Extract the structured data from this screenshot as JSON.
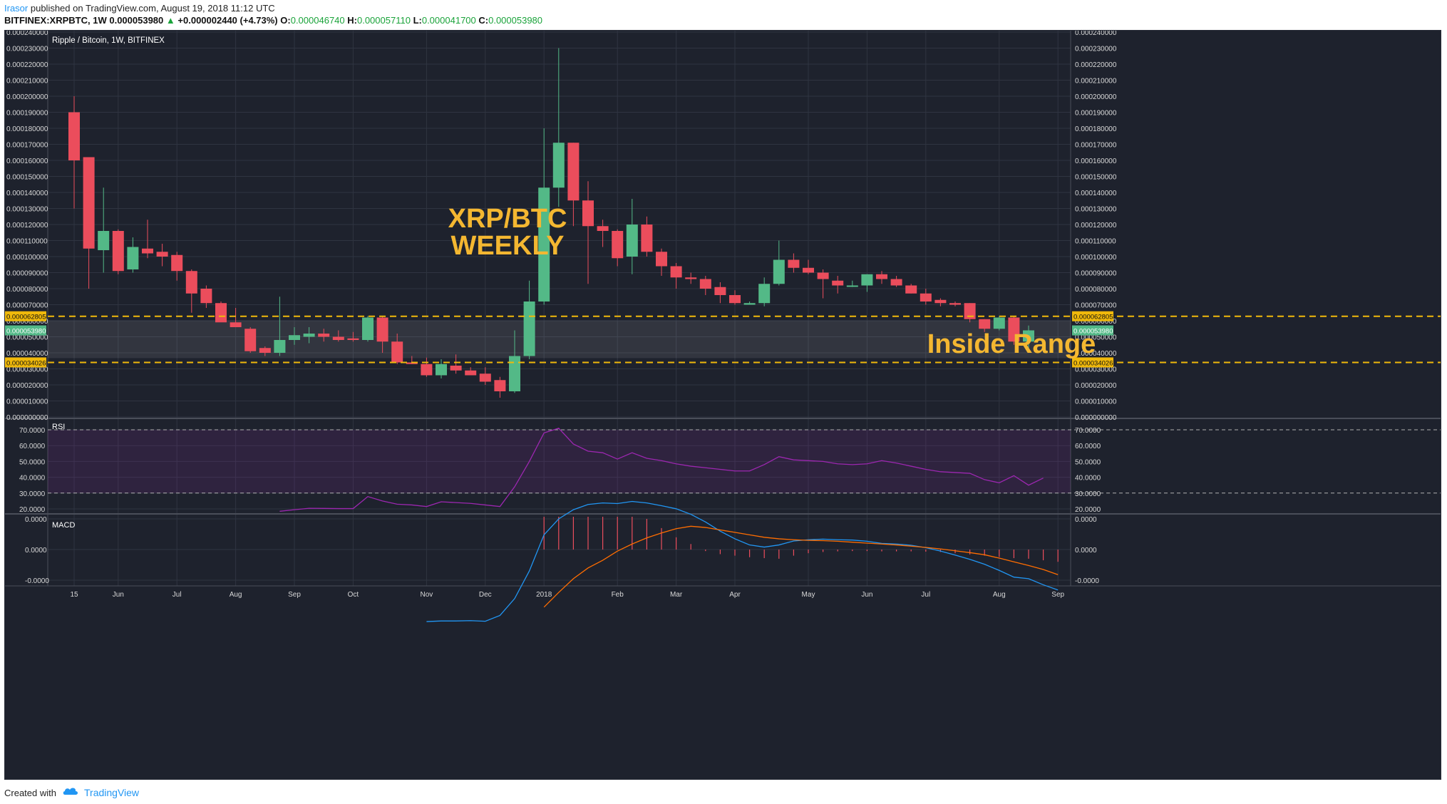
{
  "header": {
    "user": "Irasor",
    "published_text": "published on TradingView.com, August 19, 2018 11:12 UTC",
    "symbol": "BITFINEX:XRPBTC, 1W",
    "last": "0.000053980",
    "change_arrow": "▲",
    "change": "+0.000002440 (+4.73%)",
    "open_label": "O:",
    "open": "0.000046740",
    "high_label": "H:",
    "high": "0.000057110",
    "low_label": "L:",
    "low": "0.000041700",
    "close_label": "C:",
    "close": "0.000053980"
  },
  "chart_title": "Ripple / Bitcoin, 1W, BITFINEX",
  "annotation_title": [
    "XRP/BTC",
    "WEEKLY"
  ],
  "annotation_range": "Inside Range",
  "levels": [
    {
      "value": 6.2805e-05,
      "label": "0.000062805"
    },
    {
      "value": 3.4026e-05,
      "label": "0.000034026"
    }
  ],
  "last_price_label": "0.000053980",
  "colors": {
    "background": "#1e222d",
    "up": "#53b987",
    "down": "#eb4d5c",
    "level": "#f0b90b",
    "annotation": "#f4b731",
    "rsi_line": "#9c27b0",
    "macd_line": "#2196f3",
    "signal_line": "#ff6d00"
  },
  "footer": {
    "created_with": "Created with",
    "brand": "TradingView",
    "logo_icon": "tradingview-cloud-icon"
  },
  "chart_data": [
    {
      "type": "candlestick",
      "title": "Ripple / Bitcoin, 1W, BITFINEX",
      "ylim": [
        0.0,
        0.00024
      ],
      "y_tick_labels": [
        "0.000000000",
        "0.000010000",
        "0.000020000",
        "0.000030000",
        "0.000040000",
        "0.000050000",
        "0.000060000",
        "0.000070000",
        "0.000080000",
        "0.000090000",
        "0.000100000",
        "0.000110000",
        "0.000120000",
        "0.000130000",
        "0.000140000",
        "0.000150000",
        "0.000160000",
        "0.000170000",
        "0.000180000",
        "0.000190000",
        "0.000200000",
        "0.000210000",
        "0.000220000",
        "0.000230000",
        "0.000240000"
      ],
      "x_ticks": [
        {
          "label": "15",
          "i": 0
        },
        {
          "label": "Jun",
          "i": 3
        },
        {
          "label": "Jul",
          "i": 7
        },
        {
          "label": "Aug",
          "i": 11
        },
        {
          "label": "Sep",
          "i": 15
        },
        {
          "label": "Oct",
          "i": 19
        },
        {
          "label": "Nov",
          "i": 24
        },
        {
          "label": "Dec",
          "i": 28
        },
        {
          "label": "2018",
          "i": 32
        },
        {
          "label": "Feb",
          "i": 37
        },
        {
          "label": "Mar",
          "i": 41
        },
        {
          "label": "Apr",
          "i": 45
        },
        {
          "label": "May",
          "i": 50
        },
        {
          "label": "Jun",
          "i": 54
        },
        {
          "label": "Jul",
          "i": 58
        },
        {
          "label": "Aug",
          "i": 63
        },
        {
          "label": "Sep",
          "i": 67
        }
      ],
      "candles": [
        [
          0.00019,
          0.0002,
          0.00013,
          0.00016
        ],
        [
          0.000162,
          0.000162,
          8e-05,
          0.000105
        ],
        [
          0.000104,
          0.000143,
          9e-05,
          0.000116
        ],
        [
          0.000116,
          0.000117,
          8.9e-05,
          9.1e-05
        ],
        [
          9.2e-05,
          0.000112,
          9e-05,
          0.000106
        ],
        [
          0.000105,
          0.000123,
          9.9e-05,
          0.000102
        ],
        [
          0.000103,
          0.000108,
          9.4e-05,
          0.0001
        ],
        [
          0.000101,
          0.000103,
          8.5e-05,
          9.1e-05
        ],
        [
          9.1e-05,
          9.2e-05,
          6.5e-05,
          7.7e-05
        ],
        [
          8e-05,
          8.2e-05,
          6.8e-05,
          7.1e-05
        ],
        [
          7.1e-05,
          7.2e-05,
          6e-05,
          5.9e-05
        ],
        [
          5.9e-05,
          6.8e-05,
          5.7e-05,
          5.6e-05
        ],
        [
          5.5e-05,
          5.6e-05,
          4e-05,
          4.1e-05
        ],
        [
          4.3e-05,
          4.4e-05,
          3.8e-05,
          4e-05
        ],
        [
          4e-05,
          7.5e-05,
          3.8e-05,
          4.8e-05
        ],
        [
          4.8e-05,
          5.6e-05,
          4.5e-05,
          5.1e-05
        ],
        [
          5e-05,
          5.6e-05,
          4.6e-05,
          5.2e-05
        ],
        [
          5.2e-05,
          5.5e-05,
          4.7e-05,
          5e-05
        ],
        [
          5e-05,
          5.4e-05,
          4.7e-05,
          4.8e-05
        ],
        [
          4.9e-05,
          5.3e-05,
          4.7e-05,
          4.8e-05
        ],
        [
          4.8e-05,
          6.3e-05,
          4.7e-05,
          6.2e-05
        ],
        [
          6.2e-05,
          6.3e-05,
          4e-05,
          4.7e-05
        ],
        [
          4.7e-05,
          5.2e-05,
          3.3e-05,
          3.4e-05
        ],
        [
          3.4e-05,
          3.8e-05,
          3.3e-05,
          3.3e-05
        ],
        [
          3.3e-05,
          3.7e-05,
          2.5e-05,
          2.6e-05
        ],
        [
          2.6e-05,
          3.6e-05,
          2.4e-05,
          3.3e-05
        ],
        [
          3.2e-05,
          3.9e-05,
          2.7e-05,
          2.9e-05
        ],
        [
          2.9e-05,
          3.1e-05,
          2.6e-05,
          2.6e-05
        ],
        [
          2.7e-05,
          3.1e-05,
          2e-05,
          2.2e-05
        ],
        [
          2.3e-05,
          2.5e-05,
          1.2e-05,
          1.6e-05
        ],
        [
          1.6e-05,
          5.4e-05,
          1.5e-05,
          3.8e-05
        ],
        [
          3.8e-05,
          8.5e-05,
          3.6e-05,
          7.2e-05
        ],
        [
          7.2e-05,
          0.00018,
          7e-05,
          0.000143
        ],
        [
          0.000143,
          0.00023,
          0.000131,
          0.000171
        ],
        [
          0.000171,
          0.000171,
          0.000119,
          0.000135
        ],
        [
          0.000135,
          0.000147,
          8.3e-05,
          0.000119
        ],
        [
          0.000119,
          0.000123,
          0.000106,
          0.000116
        ],
        [
          0.000116,
          0.000117,
          9.4e-05,
          9.9e-05
        ],
        [
          0.0001,
          0.000136,
          8.9e-05,
          0.00012
        ],
        [
          0.00012,
          0.000125,
          0.0001,
          0.000103
        ],
        [
          0.000103,
          0.000105,
          8.8e-05,
          9.4e-05
        ],
        [
          9.4e-05,
          9.6e-05,
          8e-05,
          8.7e-05
        ],
        [
          8.7e-05,
          9e-05,
          8.3e-05,
          8.6e-05
        ],
        [
          8.6e-05,
          8.8e-05,
          7.6e-05,
          8e-05
        ],
        [
          8.1e-05,
          8.4e-05,
          7.1e-05,
          7.6e-05
        ],
        [
          7.6e-05,
          7.9e-05,
          7e-05,
          7.1e-05
        ],
        [
          7e-05,
          7.2e-05,
          7e-05,
          7.1e-05
        ],
        [
          7.1e-05,
          8.7e-05,
          6.9e-05,
          8.3e-05
        ],
        [
          8.3e-05,
          0.00011,
          8.2e-05,
          9.8e-05
        ],
        [
          9.8e-05,
          0.000102,
          9e-05,
          9.3e-05
        ],
        [
          9.3e-05,
          9.8e-05,
          8.9e-05,
          9e-05
        ],
        [
          9e-05,
          9.2e-05,
          7.4e-05,
          8.6e-05
        ],
        [
          8.5e-05,
          8.8e-05,
          7.7e-05,
          8.2e-05
        ],
        [
          8.2e-05,
          8.5e-05,
          8.1e-05,
          8.2e-05
        ],
        [
          8.2e-05,
          8.9e-05,
          7.8e-05,
          8.9e-05
        ],
        [
          8.9e-05,
          9.1e-05,
          8.3e-05,
          8.6e-05
        ],
        [
          8.6e-05,
          8.8e-05,
          8.1e-05,
          8.2e-05
        ],
        [
          8.2e-05,
          8.3e-05,
          7.7e-05,
          7.7e-05
        ],
        [
          7.7e-05,
          8e-05,
          7e-05,
          7.2e-05
        ],
        [
          7.3e-05,
          7.4e-05,
          6.9e-05,
          7.1e-05
        ],
        [
          7.1e-05,
          7.2e-05,
          6.9e-05,
          7e-05
        ],
        [
          7.1e-05,
          7.1e-05,
          5.9e-05,
          6.1e-05
        ],
        [
          6.1e-05,
          6.1e-05,
          5.3e-05,
          5.5e-05
        ],
        [
          5.5e-05,
          6.3e-05,
          5.4e-05,
          6.2e-05
        ],
        [
          6.2e-05,
          6.3e-05,
          4.5e-05,
          4.7e-05
        ],
        [
          4.7e-05,
          5.7e-05,
          4.2e-05,
          5.4e-05
        ]
      ]
    },
    {
      "type": "line",
      "title": "RSI",
      "ylim": [
        15,
        72
      ],
      "y_tick_labels": [
        "20.0000",
        "30.0000",
        "40.0000",
        "50.0000",
        "60.0000",
        "70.0000"
      ],
      "bands": [
        30,
        70
      ],
      "start_index": 14,
      "values": [
        18.5,
        19.5,
        20.4,
        20.3,
        20.2,
        20.2,
        27.8,
        25.0,
        23.0,
        22.5,
        21.5,
        24.5,
        24.0,
        23.5,
        22.5,
        21.5,
        34.0,
        50.0,
        68.0,
        71.0,
        61.0,
        56.5,
        55.5,
        51.5,
        55.5,
        52.0,
        50.5,
        48.5,
        47.0,
        46.0,
        45.0,
        44.0,
        44.0,
        48.0,
        53.0,
        51.0,
        50.5,
        50.0,
        48.5,
        48.0,
        48.5,
        50.5,
        49.0,
        47.0,
        45.0,
        43.5,
        43.0,
        42.5,
        38.5,
        36.5,
        41.0,
        35.0,
        39.5
      ]
    },
    {
      "type": "line",
      "title": "MACD",
      "y_tick_labels": [
        "-0.0000",
        "0.0000",
        "0.0000"
      ],
      "ylim": [
        -2.4e-05,
        2.4e-05
      ],
      "series": [
        {
          "start_index": 24,
          "values": [
            -2.35e-05,
            -2.33e-05,
            -2.33e-05,
            -2.32e-05,
            -2.34e-05,
            -2.15e-05,
            -1.6e-05,
            -7e-06,
            4.8e-06,
            1e-05,
            1.3e-05,
            1.47e-05,
            1.52e-05,
            1.5e-05,
            1.57e-05,
            1.52e-05,
            1.43e-05,
            1.33e-05,
            1.15e-05,
            9e-06,
            6e-06,
            3.5e-06,
            1.5e-06,
            8e-07,
            1.5e-06,
            2.8e-06,
            3.2e-06,
            3.4e-06,
            3.2e-06,
            3.1e-06,
            2.7e-06,
            2e-06,
            1.8e-06,
            1.4e-06,
            6e-07,
            -5e-07,
            -1.8e-06,
            -3.2e-06,
            -4.8e-06,
            -6.8e-06,
            -9e-06,
            -9.5e-06,
            -1.15e-05,
            -1.32e-05
          ]
        },
        {
          "start_index": 32,
          "values": [
            -1.88e-05,
            -1.4e-05,
            -9.5e-06,
            -6e-06,
            -3.5e-06,
            -5e-07,
            1.8e-06,
            3.8e-06,
            5.4e-06,
            6.8e-06,
            7.6e-06,
            7.2e-06,
            6.4e-06,
            5.6e-06,
            4.8e-06,
            4e-06,
            3.5e-06,
            3.2e-06,
            3e-06,
            2.9e-06,
            2.7e-06,
            2.4e-06,
            2.1e-06,
            1.8e-06,
            1.5e-06,
            1.1e-06,
            7e-07,
            2e-07,
            -4e-07,
            -1e-06,
            -1.7e-06,
            -2.8e-06,
            -4e-06,
            -5.2e-06,
            -6.5e-06,
            -8.2e-06
          ]
        },
        {
          "type": "histogram",
          "start_index": 32,
          "values": [
            2.4e-05,
            2.4e-05,
            2.3e-05,
            2.1e-05,
            1.9e-05,
            1.7e-05,
            1.3e-05,
            1e-05,
            7e-06,
            4e-06,
            1.8e-06,
            -5e-07,
            -1.5e-06,
            -2e-06,
            -2.5e-06,
            -2.8e-06,
            -3e-06,
            -2e-06,
            -1.2e-06,
            -8e-07,
            -6e-07,
            -5e-07,
            -5e-07,
            -6e-07,
            -6e-07,
            -6e-07,
            -7e-07,
            -8e-07,
            -1.2e-06,
            -1.6e-06,
            -2e-06,
            -2.4e-06,
            -2.8e-06,
            -3e-06,
            -3.5e-06,
            -4e-06
          ]
        }
      ]
    }
  ]
}
